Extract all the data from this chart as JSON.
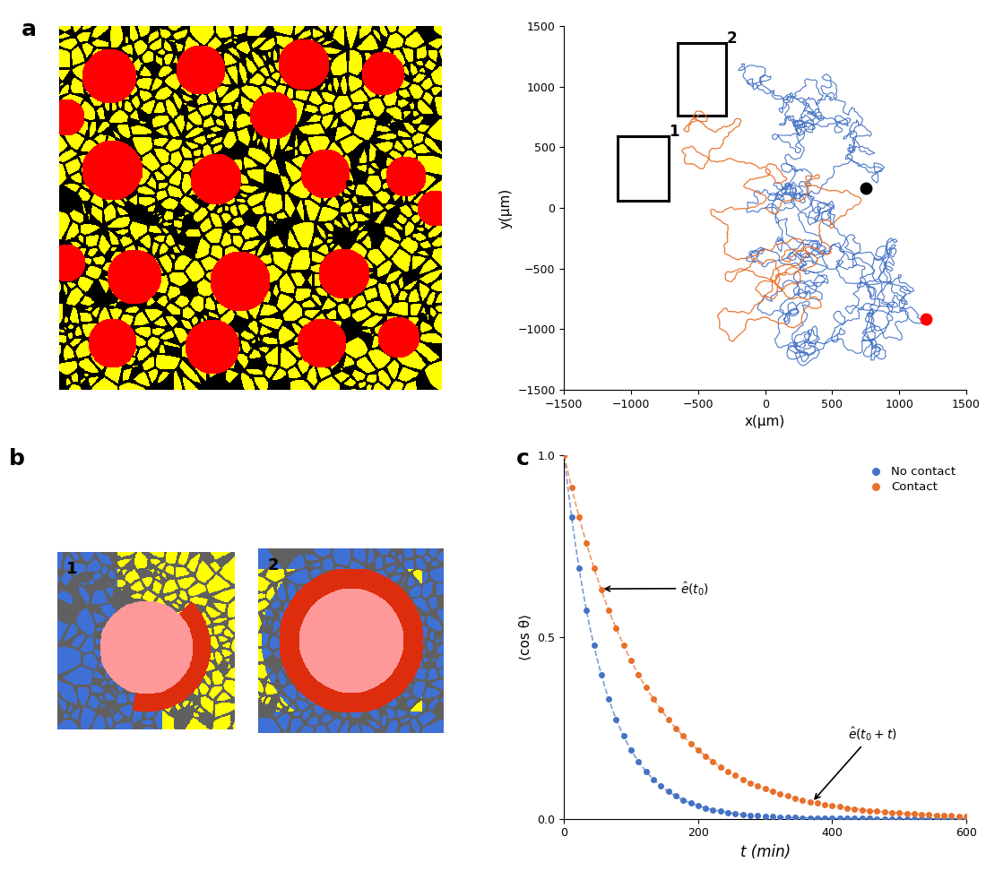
{
  "panel_labels": [
    "a",
    "b",
    "c"
  ],
  "trajectory_xlim": [
    -1500,
    1500
  ],
  "trajectory_ylim": [
    -1500,
    1500
  ],
  "trajectory_xticks": [
    -1500,
    -1000,
    -500,
    0,
    500,
    1000,
    1500
  ],
  "trajectory_yticks": [
    -1500,
    -1000,
    -500,
    0,
    500,
    1000,
    1500
  ],
  "trajectory_xlabel": "x(μm)",
  "trajectory_ylabel": "y(μm)",
  "blue_color": "#4472C4",
  "orange_color": "#E8702A",
  "cos_theta_xlabel": "t (min)",
  "cos_theta_ylabel": "⟨cos θ⟩",
  "cos_theta_xlim": [
    0,
    600
  ],
  "cos_theta_ylim": [
    0,
    1
  ],
  "cos_theta_xticks": [
    0,
    200,
    400,
    600
  ],
  "cos_theta_yticks": [
    0.0,
    0.5,
    1.0
  ],
  "legend_no_contact": "No contact",
  "legend_contact": "Contact",
  "tau_blue": 60,
  "tau_orange": 120
}
